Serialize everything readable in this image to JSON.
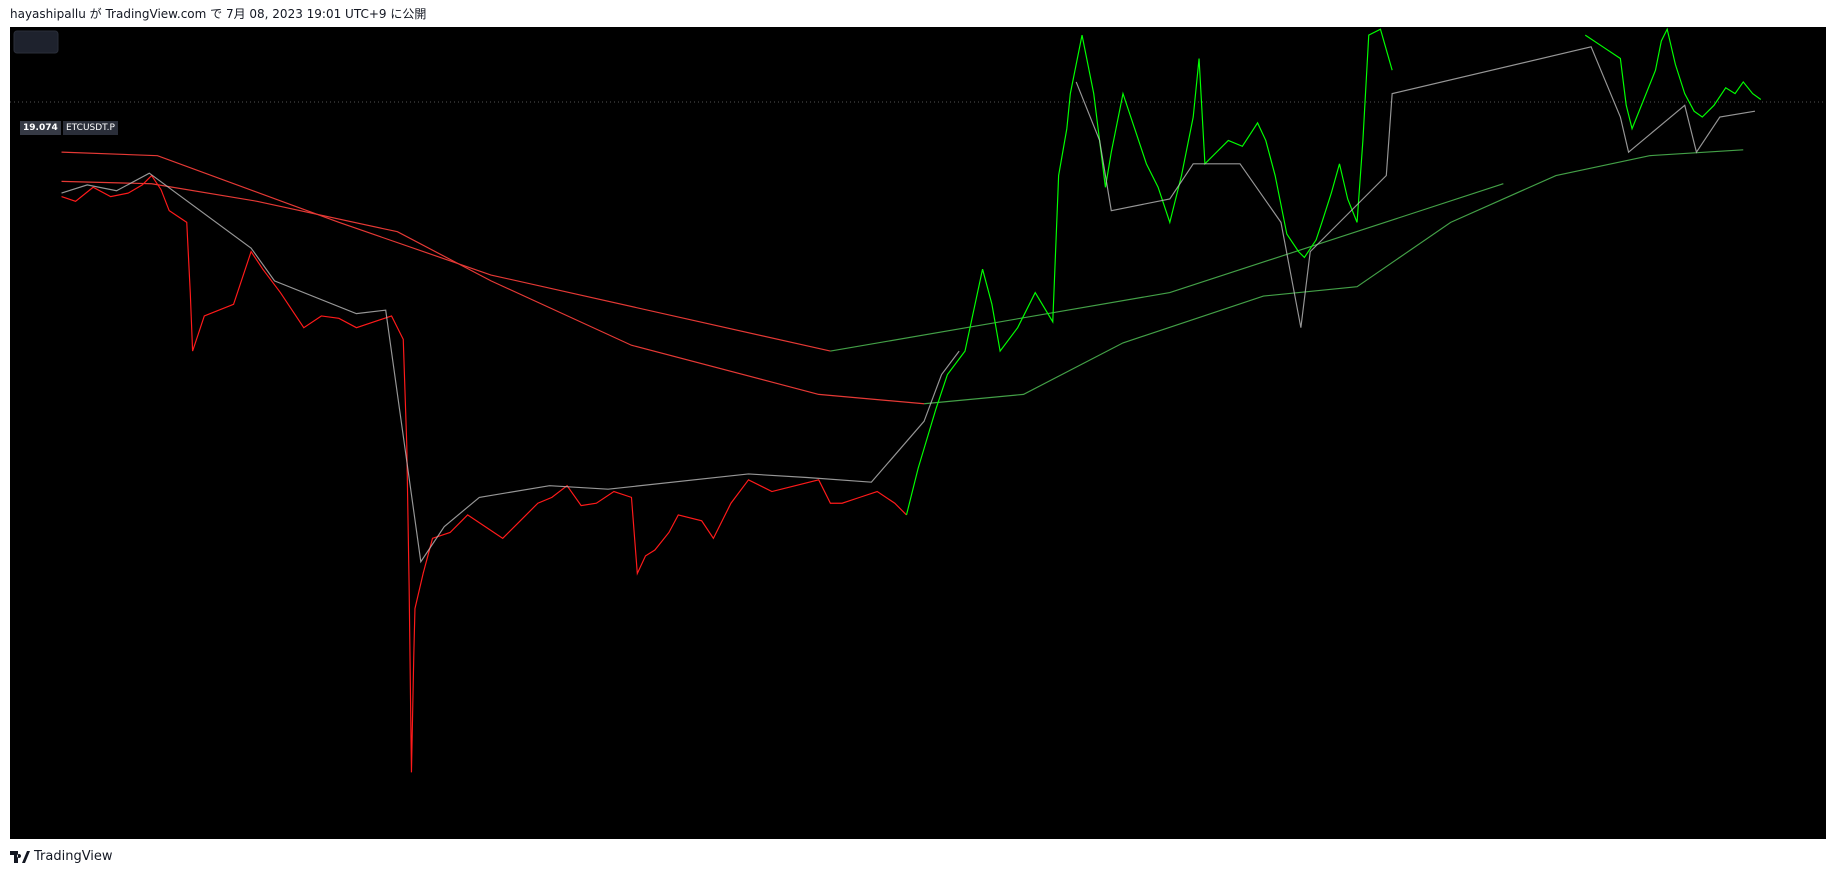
{
  "header": {
    "text": "hayashipallu が TradingView.com で 7月 08, 2023 19:01 UTC+9 に公開"
  },
  "chart": {
    "price_label": "19.074",
    "symbol_label": "ETCUSDT.P"
  },
  "footer": {
    "brand": "TradingView"
  }
}
